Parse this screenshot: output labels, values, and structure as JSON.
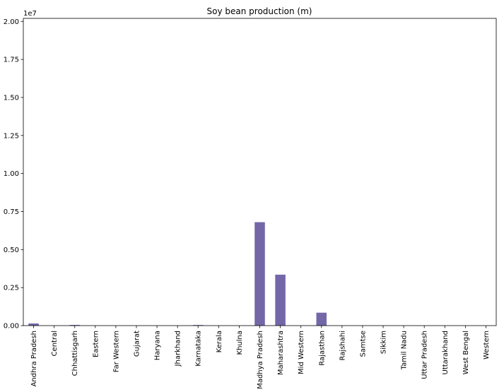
{
  "chart_data": {
    "type": "bar",
    "title": "Soy bean production (m)",
    "offset_label": "1e7",
    "categories": [
      "Andhra Pradesh",
      "Central",
      "Chhattisgarh",
      "Eastern",
      "Far Western",
      "Gujarat",
      "Haryana",
      "Jharkhand",
      "Karnataka",
      "Kerala",
      "Khulna",
      "Madhya Pradesh",
      "Maharashtra",
      "Mid Western",
      "Rajasthan",
      "Rajshahi",
      "Samtse",
      "Sikkim",
      "Tamil Nadu",
      "Uttar Pradesh",
      "Uttarakhand",
      "West Bengal",
      "Western"
    ],
    "values": [
      140000,
      0,
      45000,
      0,
      0,
      0,
      0,
      0,
      40000,
      0,
      0,
      6800000,
      3350000,
      0,
      850000,
      0,
      0,
      0,
      0,
      0,
      0,
      0,
      0
    ],
    "ylim": [
      0,
      20200000
    ],
    "yticks": [
      0,
      2500000,
      5000000,
      7500000,
      10000000,
      12500000,
      15000000,
      17500000,
      20000000
    ],
    "ytick_labels": [
      "0.00",
      "0.25",
      "0.50",
      "0.75",
      "1.00",
      "1.25",
      "1.50",
      "1.75",
      "2.00"
    ],
    "bar_color": "#7467a8",
    "grid": false,
    "xlabel": "",
    "ylabel": ""
  }
}
